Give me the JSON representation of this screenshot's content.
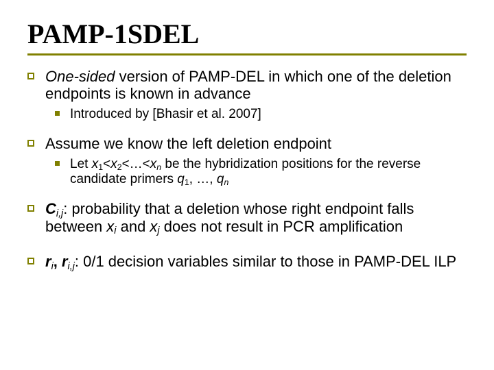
{
  "colors": {
    "accent": "#808000",
    "text": "#000000",
    "background": "#ffffff"
  },
  "typography": {
    "title_font": "Times New Roman",
    "body_font": "Verdana",
    "title_size_pt": 40,
    "body_size_pt": 22,
    "sub_size_pt": 19
  },
  "title": "PAMP-1SDEL",
  "bullets": [
    {
      "runs": [
        {
          "t": "One-sided",
          "style": "italic"
        },
        {
          "t": " version of PAMP-DEL in which one of the deletion endpoints is known in advance"
        }
      ],
      "sub": [
        {
          "runs": [
            {
              "t": "Introduced by [Bhasir et al. 2007]"
            }
          ]
        }
      ]
    },
    {
      "runs": [
        {
          "t": "Assume we know the left deletion endpoint"
        }
      ],
      "sub": [
        {
          "runs": [
            {
              "t": "Let "
            },
            {
              "t": "x",
              "style": "italic"
            },
            {
              "t": "1",
              "sub": true
            },
            {
              "t": "<"
            },
            {
              "t": "x",
              "style": "italic"
            },
            {
              "t": "2",
              "sub": true
            },
            {
              "t": "<…<"
            },
            {
              "t": "x",
              "style": "italic"
            },
            {
              "t": "n",
              "sub": true,
              "style": "italic"
            },
            {
              "t": " be the hybridization positions for the reverse candidate primers "
            },
            {
              "t": "q",
              "style": "italic"
            },
            {
              "t": "1",
              "sub": true
            },
            {
              "t": ", …, "
            },
            {
              "t": "q",
              "style": "italic"
            },
            {
              "t": "n",
              "sub": true,
              "style": "italic"
            }
          ]
        }
      ]
    },
    {
      "runs": [
        {
          "t": "C",
          "style": "bold-italic"
        },
        {
          "t": "i,j",
          "sub": true,
          "style": "italic"
        },
        {
          "t": ": probability that a deletion whose right endpoint falls between "
        },
        {
          "t": "x",
          "style": "italic"
        },
        {
          "t": "i",
          "sub": true,
          "style": "italic"
        },
        {
          "t": " and "
        },
        {
          "t": "x",
          "style": "italic"
        },
        {
          "t": "j",
          "sub": true,
          "style": "italic"
        },
        {
          "t": " does not result in PCR amplification"
        }
      ]
    },
    {
      "runs": [
        {
          "t": "r",
          "style": "bold-italic"
        },
        {
          "t": "i",
          "sub": true,
          "style": "italic"
        },
        {
          "t": ", ",
          "style": "bold"
        },
        {
          "t": "r",
          "style": "bold-italic"
        },
        {
          "t": "i,j",
          "sub": true,
          "style": "italic"
        },
        {
          "t": ": 0/1 decision variables similar to those in PAMP-DEL ILP"
        }
      ]
    }
  ]
}
